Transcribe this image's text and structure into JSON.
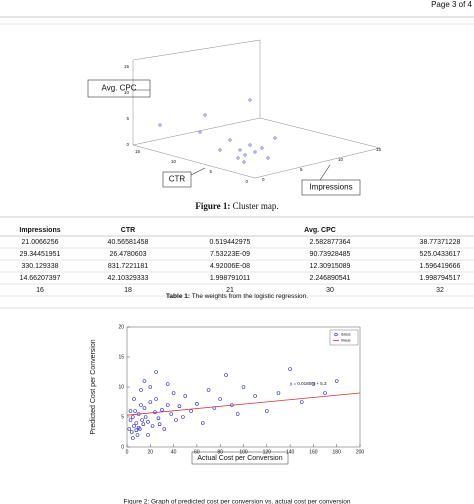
{
  "header": {
    "page": "Page 3 of 4"
  },
  "figure1": {
    "caption_label": "Figure 1:",
    "caption": "Cluster map.",
    "callouts": [
      "Avg. CPC",
      "CTR",
      "Impressions"
    ],
    "zticks": [
      0,
      5,
      10,
      15
    ],
    "xticks": [
      0,
      5,
      10,
      15
    ],
    "yticks": [
      0,
      5,
      10,
      15
    ]
  },
  "table": {
    "headers": [
      "Impressions",
      "CTR",
      "Avg. CPC"
    ],
    "rows": [
      [
        "21.0066256",
        "40.56581458",
        "0.519442975",
        "2.582877364",
        "38.77371228"
      ],
      [
        "29.34451951",
        "26.4780603",
        "7.53223E-09",
        "90.73928485",
        "525.0433617"
      ],
      [
        "330.129338",
        "831.7221181",
        "4.92006E-08",
        "12.30915089",
        "1.596419666"
      ],
      [
        "14.66207397",
        "42.10329333",
        "1.998791011",
        "2.246890541",
        "1.998794517"
      ],
      [
        "16",
        "18",
        "21",
        "30",
        "32"
      ]
    ],
    "caption_label": "Table 1:",
    "caption": "The weights from the logistic regression."
  },
  "chart_data": {
    "type": "scatter",
    "xlabel": "Actual Cost per Conversion",
    "ylabel": "Predicted Cost per Conversion",
    "xlim": [
      0,
      200
    ],
    "ylim": [
      0,
      20
    ],
    "xticks": [
      0,
      20,
      40,
      60,
      80,
      100,
      120,
      140,
      160,
      180,
      200
    ],
    "yticks": [
      0,
      5,
      10,
      15,
      20
    ],
    "series": [
      {
        "name": "data1",
        "color": "#2222dd",
        "x": [
          2,
          3,
          4,
          5,
          6,
          7,
          8,
          9,
          10,
          11,
          12,
          13,
          14,
          15,
          16,
          18,
          20,
          22,
          24,
          25,
          27,
          30,
          32,
          35,
          38,
          40,
          42,
          45,
          48,
          50,
          55,
          60,
          65,
          70,
          75,
          80,
          85,
          90,
          95,
          100,
          110,
          120,
          130,
          140,
          150,
          160,
          170,
          180,
          5,
          8,
          12,
          15,
          20,
          25,
          3,
          6,
          10,
          18,
          28,
          35
        ],
        "values": [
          3,
          4.5,
          2.5,
          5,
          3.5,
          6,
          4,
          2,
          5.5,
          3,
          7,
          4.5,
          3.8,
          6.5,
          5,
          4.2,
          7.5,
          3.5,
          5.8,
          8,
          4.8,
          6.2,
          3,
          7,
          5.5,
          9,
          4.5,
          6.8,
          5,
          8.5,
          6,
          7.2,
          4,
          9.5,
          6.5,
          8,
          12,
          7,
          5.5,
          10,
          8.5,
          6,
          9,
          13,
          7.5,
          10.5,
          9,
          11,
          1.5,
          2.8,
          9.5,
          11,
          10,
          12.5,
          6,
          8,
          3.2,
          2,
          3.8,
          10.5
        ]
      },
      {
        "name": "linear",
        "color": "#e03030",
        "slope": 0.0185,
        "intercept": 5.3
      }
    ],
    "equation": "y = 0.0185*x + 5.3",
    "caption": "Figure 2: Graph of predicted cost per conversion vs. actual cost per conversion"
  }
}
